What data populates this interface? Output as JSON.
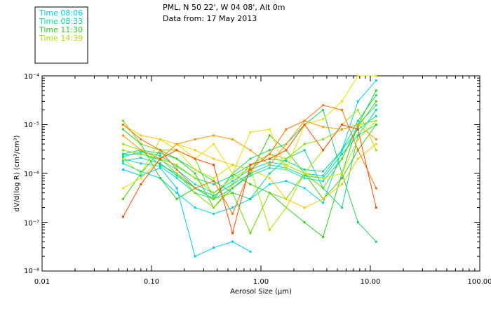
{
  "header": {
    "location": "PML, N 50 22', W 04 08', Alt 0m",
    "date": "Data from: 17 May 2013"
  },
  "chart_data": {
    "type": "line",
    "xlabel": "Aerosol Size (μm)",
    "ylabel": "dV/d(log R) (cm³/cm³)",
    "xscale": "log",
    "yscale": "log",
    "xlim": [
      0.01,
      100
    ],
    "ylim": [
      1e-08,
      0.0001
    ],
    "x_ticks": [
      "0.01",
      "0.10",
      "1.00",
      "10.00",
      "100.00"
    ],
    "y_ticks": [
      "10⁻⁸",
      "10⁻⁷",
      "10⁻⁶",
      "10⁻⁵",
      "10⁻⁴"
    ],
    "legend_position": "top-left",
    "legend": [
      {
        "label": "Time 08:06",
        "color": "#00c8e8"
      },
      {
        "label": "Time 08:33",
        "color": "#00dd90"
      },
      {
        "label": "Time 11:30",
        "color": "#33cc22"
      },
      {
        "label": "Time 14:39",
        "color": "#a8e000"
      }
    ],
    "x": [
      0.055,
      0.08,
      0.12,
      0.17,
      0.25,
      0.37,
      0.55,
      0.8,
      1.2,
      1.7,
      2.5,
      3.7,
      5.5,
      7.7,
      11.3
    ],
    "series": [
      {
        "color": "#00c8e8",
        "values": [
          1.2e-06,
          9e-07,
          1.3e-06,
          5e-07,
          2e-08,
          3e-08,
          4e-08,
          2.5e-08,
          null,
          null,
          null,
          null,
          null,
          null,
          null
        ]
      },
      {
        "color": "#00d4e0",
        "values": [
          1.6e-06,
          1.1e-06,
          8e-07,
          4e-07,
          2e-07,
          1.5e-07,
          2e-07,
          3e-07,
          6e-07,
          7e-07,
          5e-07,
          2.5e-07,
          3e-06,
          3e-05,
          8e-05
        ]
      },
      {
        "color": "#10d8d0",
        "values": [
          2e-06,
          1.6e-06,
          1.4e-06,
          8e-07,
          4e-07,
          3e-07,
          5e-07,
          9e-07,
          1.3e-06,
          1.2e-06,
          8e-07,
          7e-07,
          2e-06,
          1e-05,
          2.5e-05
        ]
      },
      {
        "color": "#00dcc0",
        "values": [
          2.4e-06,
          2.5e-06,
          1.9e-06,
          1.2e-06,
          6e-07,
          4e-07,
          7e-07,
          1.2e-06,
          1.7e-06,
          1.5e-06,
          1e-06,
          9e-07,
          3e-06,
          8e-06,
          1.5e-05
        ]
      },
      {
        "color": "#00dda8",
        "values": [
          1.8e-06,
          2.1e-06,
          1.6e-06,
          9e-07,
          5e-07,
          3.5e-07,
          6e-07,
          1e-06,
          1.5e-06,
          1.3e-06,
          9e-07,
          8e-07,
          2.5e-06,
          6e-06,
          1e-05
        ]
      },
      {
        "color": "#00dd90",
        "values": [
          2.2e-06,
          2.8e-06,
          2.3e-06,
          1.4e-06,
          8e-07,
          6e-07,
          9e-07,
          1.5e-06,
          2e-06,
          1.8e-06,
          1.2e-06,
          1.1e-06,
          3e-06,
          1.2e-05,
          4e-05
        ]
      },
      {
        "color": "#10d878",
        "values": [
          2.5e-06,
          3e-06,
          2.6e-06,
          2e-06,
          1.2e-06,
          7e-07,
          4e-07,
          3e-07,
          1e-06,
          2e-06,
          3e-06,
          5e-07,
          2e-07,
          6e-06,
          2e-05
        ]
      },
      {
        "color": "#22d060",
        "values": [
          4e-06,
          3e-06,
          1.5e-06,
          1e-06,
          5e-07,
          3e-07,
          1e-06,
          2e-06,
          3e-06,
          4e-06,
          1e-05,
          2e-05,
          1e-06,
          1e-07,
          4e-08
        ]
      },
      {
        "color": "#33cc22",
        "values": [
          8e-06,
          4e-06,
          8e-07,
          3e-07,
          5e-07,
          3e-07,
          1e-06,
          6e-07,
          4e-07,
          2e-07,
          1e-07,
          5e-08,
          1e-06,
          1e-05,
          5e-05
        ]
      },
      {
        "color": "#44cc11",
        "values": [
          3e-07,
          1e-06,
          3e-06,
          2e-06,
          1e-06,
          2e-07,
          5e-07,
          1e-06,
          6e-06,
          3e-06,
          1e-06,
          3e-07,
          8e-07,
          3e-06,
          1e-05
        ]
      },
      {
        "color": "#66d400",
        "values": [
          1.2e-05,
          4e-06,
          3e-06,
          3e-06,
          2e-06,
          3e-07,
          4e-07,
          6e-08,
          4e-07,
          3e-07,
          1e-06,
          5e-07,
          2e-06,
          9e-06,
          3e-05
        ]
      },
      {
        "color": "#88dc00",
        "values": [
          3e-06,
          2.5e-06,
          2e-06,
          1e-06,
          4e-07,
          2e-07,
          6e-07,
          1.5e-06,
          2.5e-06,
          2e-06,
          4e-06,
          5e-06,
          8e-06,
          1e-05,
          1.2e-05
        ]
      },
      {
        "color": "#a8e000",
        "values": [
          4e-06,
          3e-06,
          2e-06,
          1.5e-06,
          8e-07,
          4e-07,
          8e-07,
          1.3e-06,
          7e-08,
          2e-07,
          1e-06,
          3e-06,
          1e-05,
          2e-05,
          3e-06
        ]
      },
      {
        "color": "#c8e800",
        "values": [
          2e-06,
          1e-06,
          5e-06,
          3e-06,
          1.2e-06,
          8e-07,
          1.5e-06,
          1.2e-06,
          2.5e-06,
          1.5e-06,
          1e-06,
          8e-07,
          1e-06,
          5e-06,
          1.2e-05
        ]
      },
      {
        "color": "#e8e000",
        "values": [
          5e-07,
          8e-07,
          2e-06,
          4e-06,
          2e-06,
          4e-06,
          1e-06,
          7e-06,
          8e-06,
          1.2e-06,
          1e-05,
          1.3e-05,
          3e-05,
          0.0001,
          0.0001
        ]
      },
      {
        "color": "#ffc800",
        "values": [
          1e-05,
          6e-06,
          5e-06,
          4e-06,
          3e-06,
          2e-06,
          1.5e-06,
          1.2e-06,
          8e-07,
          3e-07,
          2e-07,
          3e-07,
          6e-07,
          2e-06,
          4e-06
        ]
      },
      {
        "color": "#ff9a00",
        "values": [
          6e-06,
          3e-06,
          2e-06,
          4e-06,
          5e-06,
          6e-06,
          5e-06,
          3e-06,
          1.5e-06,
          4e-06,
          1.2e-05,
          9e-06,
          8e-06,
          1e-05,
          5e-06
        ]
      },
      {
        "color": "#ff7000",
        "values": [
          1e-05,
          5e-06,
          3e-06,
          1.2e-06,
          5e-07,
          7e-07,
          1.5e-07,
          1.2e-06,
          2.5e-06,
          8e-06,
          1.2e-05,
          2.5e-05,
          2e-05,
          3e-06,
          5e-07
        ]
      },
      {
        "color": "#ff4a00",
        "values": [
          1.3e-07,
          6e-07,
          2e-06,
          3e-06,
          2e-06,
          1.5e-06,
          6e-08,
          1.5e-06,
          2e-06,
          3e-06,
          1e-05,
          3e-06,
          1e-05,
          8e-06,
          2e-07
        ]
      }
    ]
  }
}
